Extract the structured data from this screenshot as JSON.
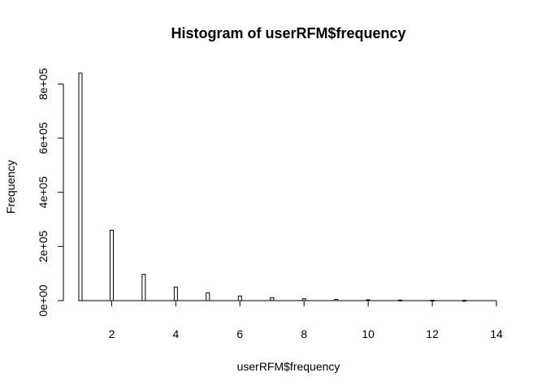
{
  "chart_data": {
    "type": "bar",
    "title": "Histogram of userRFM$frequency",
    "xlabel": "userRFM$frequency",
    "ylabel": "Frequency",
    "xlim": [
      1,
      14
    ],
    "ylim": [
      0,
      840000
    ],
    "x_ticks": [
      2,
      4,
      6,
      8,
      10,
      12,
      14
    ],
    "x_tick_labels": [
      "2",
      "4",
      "6",
      "8",
      "10",
      "12",
      "14"
    ],
    "y_ticks": [
      0,
      200000,
      400000,
      600000,
      800000
    ],
    "y_tick_labels": [
      "0e+00",
      "2e+05",
      "4e+05",
      "6e+05",
      "8e+05"
    ],
    "bars": [
      {
        "x": 1,
        "value": 840000
      },
      {
        "x": 2,
        "value": 260000
      },
      {
        "x": 3,
        "value": 97000
      },
      {
        "x": 4,
        "value": 50000
      },
      {
        "x": 5,
        "value": 29000
      },
      {
        "x": 6,
        "value": 17000
      },
      {
        "x": 7,
        "value": 11000
      },
      {
        "x": 8,
        "value": 7000
      },
      {
        "x": 9,
        "value": 4500
      },
      {
        "x": 10,
        "value": 3000
      },
      {
        "x": 11,
        "value": 2000
      },
      {
        "x": 12,
        "value": 1500
      },
      {
        "x": 13,
        "value": 1000
      }
    ],
    "grid": false,
    "legend": "none"
  }
}
